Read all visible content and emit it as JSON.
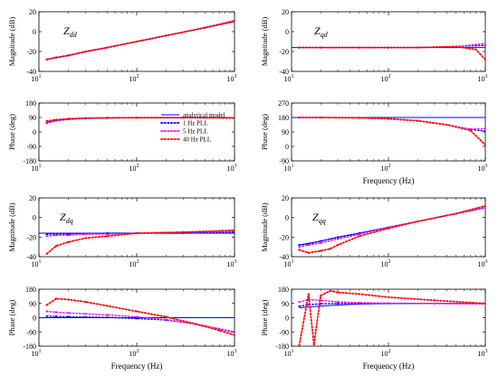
{
  "legend": {
    "entries": [
      {
        "label": "analytical model",
        "color": "#0000ff",
        "style": "solid"
      },
      {
        "label": "1 Hz PLL",
        "color": "#0000ff",
        "style": "dotted"
      },
      {
        "label": "5 Hz PLL",
        "color": "#ff00ff",
        "style": "dotted"
      },
      {
        "label": "40 Hz PLL",
        "color": "#ff0000",
        "style": "dotted"
      }
    ]
  },
  "chart_data": [
    {
      "type": "line",
      "panel": "dd-magnitude",
      "annotation": "Z_dd",
      "ylabel": "Magnitude (dB)",
      "xlabel": "",
      "xscale": "log",
      "xlim": [
        10,
        1000
      ],
      "ylim": [
        -40,
        20
      ],
      "yticks": [
        -40,
        -20,
        0,
        20
      ],
      "series": [
        {
          "name": "analytical model",
          "style": "solid",
          "color": "#0000ff",
          "x": [
            12,
            20,
            50,
            100,
            200,
            500,
            1000
          ],
          "y": [
            -28,
            -24,
            -16,
            -10,
            -4,
            4,
            10
          ]
        },
        {
          "name": "1 Hz PLL",
          "style": "dotted",
          "color": "#0000ff",
          "x": [
            12,
            15,
            20,
            30,
            50,
            100,
            200,
            500,
            1000
          ],
          "y": [
            -28,
            -26,
            -24,
            -20,
            -16,
            -10,
            -4,
            4,
            10
          ]
        },
        {
          "name": "5 Hz PLL",
          "style": "dotted",
          "color": "#ff00ff",
          "x": [
            12,
            15,
            20,
            30,
            50,
            100,
            200,
            500,
            1000
          ],
          "y": [
            -28,
            -26,
            -24,
            -20,
            -16,
            -10,
            -4,
            4,
            10
          ]
        },
        {
          "name": "40 Hz PLL",
          "style": "dotted",
          "color": "#ff0000",
          "x": [
            12,
            15,
            20,
            30,
            50,
            100,
            200,
            500,
            1000
          ],
          "y": [
            -28,
            -26,
            -24,
            -20,
            -16,
            -10,
            -4,
            4,
            11
          ]
        }
      ]
    },
    {
      "type": "line",
      "panel": "qd-magnitude",
      "annotation": "Z_qd",
      "ylabel": "Magnitude (dB)",
      "xlabel": "",
      "xscale": "log",
      "xlim": [
        10,
        1000
      ],
      "ylim": [
        -40,
        20
      ],
      "yticks": [
        -40,
        -20,
        0,
        20
      ],
      "series": [
        {
          "name": "analytical model",
          "style": "solid",
          "color": "#0000ff",
          "x": [
            10,
            100,
            1000
          ],
          "y": [
            -16,
            -16,
            -16
          ]
        },
        {
          "name": "1 Hz PLL",
          "style": "dotted",
          "color": "#0000ff",
          "x": [
            12,
            20,
            50,
            100,
            200,
            500,
            800,
            1000
          ],
          "y": [
            -16,
            -16,
            -16,
            -16,
            -16,
            -15,
            -14,
            -14
          ]
        },
        {
          "name": "5 Hz PLL",
          "style": "dotted",
          "color": "#ff00ff",
          "x": [
            12,
            20,
            50,
            100,
            200,
            500,
            800,
            1000
          ],
          "y": [
            -16,
            -16,
            -16,
            -16,
            -16,
            -15,
            -13,
            -12
          ]
        },
        {
          "name": "40 Hz PLL",
          "style": "dotted",
          "color": "#ff0000",
          "x": [
            12,
            20,
            50,
            100,
            200,
            500,
            800,
            1000
          ],
          "y": [
            -16,
            -16,
            -16,
            -16,
            -16,
            -15,
            -18,
            -28
          ]
        }
      ]
    },
    {
      "type": "line",
      "panel": "dd-phase",
      "ylabel": "Phase (deg)",
      "xlabel": "",
      "xscale": "log",
      "xlim": [
        10,
        1000
      ],
      "ylim": [
        -180,
        180
      ],
      "yticks": [
        -180,
        -90,
        0,
        90,
        180
      ],
      "series": [
        {
          "name": "analytical model",
          "style": "solid",
          "color": "#0000ff",
          "x": [
            12,
            15,
            20,
            30,
            50,
            100,
            1000
          ],
          "y": [
            60,
            72,
            80,
            85,
            88,
            89,
            90
          ]
        },
        {
          "name": "1 Hz PLL",
          "style": "dotted",
          "color": "#0000ff",
          "x": [
            12,
            15,
            20,
            30,
            50,
            100,
            300,
            1000
          ],
          "y": [
            55,
            70,
            78,
            84,
            87,
            89,
            89,
            88
          ]
        },
        {
          "name": "5 Hz PLL",
          "style": "dotted",
          "color": "#ff00ff",
          "x": [
            12,
            15,
            20,
            30,
            50,
            100,
            300,
            1000
          ],
          "y": [
            58,
            71,
            79,
            85,
            88,
            89,
            89,
            88
          ]
        },
        {
          "name": "40 Hz PLL",
          "style": "dotted",
          "color": "#ff0000",
          "x": [
            12,
            15,
            20,
            30,
            50,
            100,
            300,
            1000
          ],
          "y": [
            68,
            76,
            82,
            86,
            88,
            89,
            89,
            87
          ]
        }
      ]
    },
    {
      "type": "line",
      "panel": "qd-phase",
      "ylabel": "Phase (deg)",
      "xlabel": "Frequency (Hz)",
      "xscale": "log",
      "xlim": [
        10,
        1000
      ],
      "ylim": [
        -90,
        270
      ],
      "yticks": [
        -90,
        0,
        90,
        180,
        270
      ],
      "series": [
        {
          "name": "analytical model",
          "style": "solid",
          "color": "#0000ff",
          "x": [
            10,
            1000
          ],
          "y": [
            180,
            180
          ]
        },
        {
          "name": "1 Hz PLL",
          "style": "dotted",
          "color": "#0000ff",
          "x": [
            12,
            20,
            50,
            100,
            200,
            400,
            700,
            1000
          ],
          "y": [
            180,
            180,
            178,
            172,
            160,
            135,
            105,
            95
          ]
        },
        {
          "name": "5 Hz PLL",
          "style": "dotted",
          "color": "#ff00ff",
          "x": [
            12,
            20,
            50,
            100,
            200,
            400,
            700,
            1000
          ],
          "y": [
            180,
            180,
            178,
            172,
            160,
            135,
            108,
            110
          ]
        },
        {
          "name": "40 Hz PLL",
          "style": "dotted",
          "color": "#ff0000",
          "x": [
            12,
            20,
            50,
            100,
            200,
            400,
            700,
            1000
          ],
          "y": [
            180,
            180,
            178,
            172,
            160,
            135,
            100,
            10
          ]
        }
      ]
    },
    {
      "type": "line",
      "panel": "dq-magnitude",
      "annotation": "Z_dq",
      "ylabel": "Magnitude (dB)",
      "xlabel": "",
      "xscale": "log",
      "xlim": [
        10,
        1000
      ],
      "ylim": [
        -40,
        20
      ],
      "yticks": [
        -40,
        -20,
        0,
        20
      ],
      "series": [
        {
          "name": "analytical model",
          "style": "solid",
          "color": "#0000ff",
          "x": [
            10,
            100,
            1000
          ],
          "y": [
            -16,
            -16,
            -16
          ]
        },
        {
          "name": "1 Hz PLL",
          "style": "dotted",
          "color": "#0000ff",
          "x": [
            12,
            20,
            50,
            100,
            300,
            1000
          ],
          "y": [
            -17,
            -17,
            -16,
            -16,
            -16,
            -15
          ]
        },
        {
          "name": "5 Hz PLL",
          "style": "dotted",
          "color": "#ff00ff",
          "x": [
            12,
            15,
            20,
            30,
            50,
            100,
            300,
            1000
          ],
          "y": [
            -19,
            -18,
            -18,
            -17,
            -17,
            -16,
            -15,
            -14
          ]
        },
        {
          "name": "40 Hz PLL",
          "style": "dotted",
          "color": "#ff0000",
          "x": [
            12,
            15,
            20,
            30,
            50,
            100,
            300,
            1000
          ],
          "y": [
            -37,
            -29,
            -25,
            -21,
            -19,
            -16,
            -15,
            -13
          ]
        }
      ]
    },
    {
      "type": "line",
      "panel": "qq-magnitude",
      "annotation": "Z_qq",
      "ylabel": "Magnitude (dB)",
      "xlabel": "",
      "xscale": "log",
      "xlim": [
        10,
        1000
      ],
      "ylim": [
        -40,
        20
      ],
      "yticks": [
        -40,
        -20,
        0,
        20
      ],
      "series": [
        {
          "name": "analytical model",
          "style": "solid",
          "color": "#0000ff",
          "x": [
            12,
            20,
            50,
            100,
            200,
            500,
            1000
          ],
          "y": [
            -28,
            -24,
            -16,
            -10,
            -4,
            4,
            10
          ]
        },
        {
          "name": "1 Hz PLL",
          "style": "dotted",
          "color": "#0000ff",
          "x": [
            12,
            15,
            20,
            30,
            50,
            100,
            200,
            500,
            1000
          ],
          "y": [
            -28,
            -27,
            -24,
            -20,
            -16,
            -10,
            -4,
            4,
            10
          ]
        },
        {
          "name": "5 Hz PLL",
          "style": "dotted",
          "color": "#ff00ff",
          "x": [
            12,
            15,
            20,
            30,
            50,
            100,
            200,
            500,
            1000
          ],
          "y": [
            -30,
            -28,
            -26,
            -22,
            -17,
            -10,
            -4,
            4,
            10
          ]
        },
        {
          "name": "40 Hz PLL",
          "style": "dotted",
          "color": "#ff0000",
          "x": [
            12,
            15,
            20,
            25,
            30,
            50,
            100,
            200,
            500,
            1000
          ],
          "y": [
            -33,
            -36,
            -34,
            -32,
            -28,
            -19,
            -11,
            -4,
            4,
            12
          ]
        }
      ]
    },
    {
      "type": "line",
      "panel": "dq-phase",
      "ylabel": "Phase (deg)",
      "xlabel": "Frequency (Hz)",
      "xscale": "log",
      "xlim": [
        10,
        1000
      ],
      "ylim": [
        -180,
        180
      ],
      "yticks": [
        -180,
        -90,
        0,
        90,
        180
      ],
      "series": [
        {
          "name": "analytical model",
          "style": "solid",
          "color": "#0000ff",
          "x": [
            10,
            1000
          ],
          "y": [
            0,
            0
          ]
        },
        {
          "name": "1 Hz PLL",
          "style": "dotted",
          "color": "#0000ff",
          "x": [
            12,
            15,
            20,
            30,
            50,
            100,
            200,
            400,
            700,
            1000
          ],
          "y": [
            10,
            8,
            6,
            4,
            2,
            -5,
            -15,
            -40,
            -70,
            -90
          ]
        },
        {
          "name": "5 Hz PLL",
          "style": "dotted",
          "color": "#ff00ff",
          "x": [
            12,
            15,
            20,
            30,
            50,
            100,
            200,
            400,
            700,
            1000
          ],
          "y": [
            40,
            35,
            30,
            25,
            18,
            5,
            -12,
            -40,
            -70,
            -95
          ]
        },
        {
          "name": "40 Hz PLL",
          "style": "dotted",
          "color": "#ff0000",
          "x": [
            12,
            15,
            20,
            30,
            50,
            100,
            200,
            400,
            700,
            1000
          ],
          "y": [
            80,
            120,
            115,
            100,
            75,
            40,
            5,
            -40,
            -80,
            -110
          ]
        }
      ]
    },
    {
      "type": "line",
      "panel": "qq-phase",
      "ylabel": "Phase (deg)",
      "xlabel": "Frequency (Hz)",
      "xscale": "log",
      "xlim": [
        10,
        1000
      ],
      "ylim": [
        -180,
        180
      ],
      "yticks": [
        -180,
        -90,
        0,
        90,
        180
      ],
      "series": [
        {
          "name": "analytical model",
          "style": "solid",
          "color": "#0000ff",
          "x": [
            12,
            15,
            20,
            30,
            50,
            100,
            200,
            500,
            1000
          ],
          "y": [
            62,
            68,
            74,
            80,
            86,
            89,
            90,
            90,
            90
          ]
        },
        {
          "name": "1 Hz PLL",
          "style": "dotted",
          "color": "#0000ff",
          "x": [
            12,
            15,
            20,
            30,
            50,
            100,
            300,
            1000
          ],
          "y": [
            72,
            82,
            88,
            90,
            90,
            90,
            90,
            88
          ]
        },
        {
          "name": "5 Hz PLL",
          "style": "dotted",
          "color": "#ff00ff",
          "x": [
            12,
            15,
            20,
            30,
            50,
            100,
            300,
            1000
          ],
          "y": [
            100,
            115,
            110,
            100,
            95,
            92,
            90,
            88
          ]
        },
        {
          "name": "40 Hz PLL",
          "style": "dotted",
          "color": "#ff0000",
          "x": [
            12,
            15,
            17,
            20,
            25,
            30,
            50,
            100,
            300,
            1000
          ],
          "y": [
            -175,
            150,
            -170,
            140,
            170,
            160,
            150,
            130,
            110,
            90
          ]
        }
      ]
    }
  ]
}
